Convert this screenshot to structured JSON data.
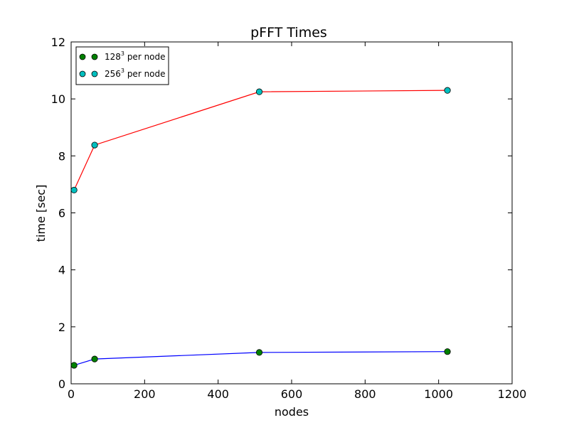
{
  "chart_data": {
    "type": "line",
    "title": "pFFT Times",
    "xlabel": "nodes",
    "ylabel": "time [sec]",
    "xlim": [
      0,
      1200
    ],
    "ylim": [
      0,
      12
    ],
    "xticks": [
      "0",
      "200",
      "400",
      "600",
      "800",
      "1000",
      "1200"
    ],
    "yticks": [
      "0",
      "2",
      "4",
      "6",
      "8",
      "10",
      "12"
    ],
    "grid": false,
    "legend_position": "top-left",
    "series": [
      {
        "name_base": "128",
        "name_exp": "3",
        "name_suffix": " per node",
        "x": [
          8,
          64,
          512,
          1024
        ],
        "y": [
          0.65,
          0.87,
          1.1,
          1.13
        ],
        "line_color": "#0000ff",
        "marker_color": "#008000"
      },
      {
        "name_base": "256",
        "name_exp": "3",
        "name_suffix": " per node",
        "x": [
          8,
          64,
          512,
          1024
        ],
        "y": [
          6.8,
          8.38,
          10.25,
          10.3
        ],
        "line_color": "#ff0000",
        "marker_color": "#00bfbf"
      }
    ]
  }
}
